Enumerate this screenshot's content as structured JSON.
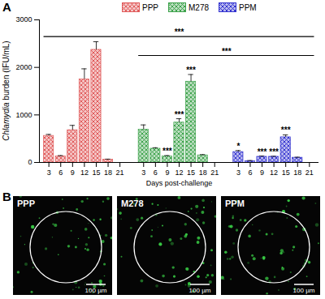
{
  "chart_data": {
    "type": "bar",
    "panel_label": "A",
    "y_label": "Chlamydia burden (IFU/mL)",
    "x_label": "Days post-challenge",
    "categories": [
      3,
      6,
      9,
      12,
      15,
      18,
      21
    ],
    "series": [
      {
        "name": "PPP",
        "color": "#e05a5a",
        "values": [
          560,
          130,
          680,
          1750,
          2370,
          60,
          0
        ],
        "errors": [
          30,
          15,
          100,
          220,
          170,
          10,
          0
        ],
        "significance": [
          null,
          null,
          null,
          null,
          null,
          null,
          null
        ]
      },
      {
        "name": "M278",
        "color": "#3fa34d",
        "values": [
          690,
          290,
          130,
          840,
          1700,
          150,
          0
        ],
        "errors": [
          100,
          20,
          15,
          80,
          150,
          15,
          0
        ],
        "significance": [
          null,
          null,
          "***",
          "***",
          "***",
          null,
          null
        ]
      },
      {
        "name": "PPM",
        "color": "#3535d0",
        "values": [
          220,
          30,
          120,
          120,
          530,
          100,
          0
        ],
        "errors": [
          30,
          10,
          15,
          10,
          50,
          10,
          0
        ],
        "significance": [
          "*",
          null,
          "***",
          "***",
          "***",
          null,
          null
        ]
      }
    ],
    "ylim": [
      0,
      3000
    ],
    "yticks": [
      0,
      1000,
      2000,
      3000
    ],
    "legend": "top",
    "brackets": [
      {
        "from": "PPP",
        "to": "PPM",
        "y": 2650,
        "label": "***"
      },
      {
        "from": "M278",
        "to": "PPM",
        "y": 2250,
        "label": "***"
      }
    ]
  },
  "panel_b": {
    "panel_label": "B",
    "images": [
      {
        "label": "PPP",
        "scale_bar": "100 µm"
      },
      {
        "label": "M278",
        "scale_bar": "100 µm"
      },
      {
        "label": "PPM",
        "scale_bar": "100 µm"
      }
    ]
  }
}
